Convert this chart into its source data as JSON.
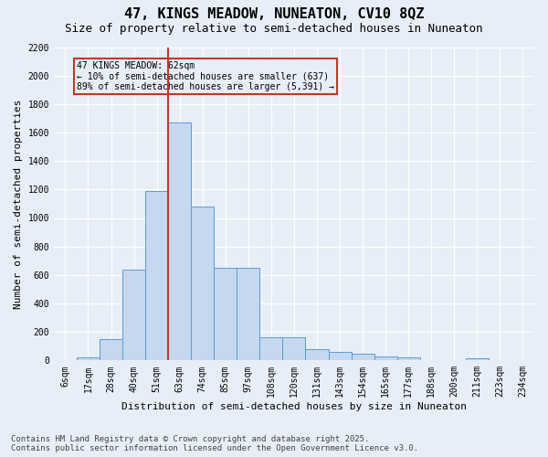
{
  "title1": "47, KINGS MEADOW, NUNEATON, CV10 8QZ",
  "title2": "Size of property relative to semi-detached houses in Nuneaton",
  "xlabel": "Distribution of semi-detached houses by size in Nuneaton",
  "ylabel": "Number of semi-detached properties",
  "categories": [
    "6sqm",
    "17sqm",
    "28sqm",
    "40sqm",
    "51sqm",
    "63sqm",
    "74sqm",
    "85sqm",
    "97sqm",
    "108sqm",
    "120sqm",
    "131sqm",
    "143sqm",
    "154sqm",
    "165sqm",
    "177sqm",
    "188sqm",
    "200sqm",
    "211sqm",
    "223sqm",
    "234sqm"
  ],
  "values": [
    5,
    20,
    150,
    640,
    1190,
    1670,
    1080,
    650,
    650,
    160,
    160,
    80,
    60,
    45,
    25,
    20,
    5,
    5,
    15,
    0,
    0
  ],
  "bar_color": "#c5d8f0",
  "bar_edge_color": "#5b9bd5",
  "bg_color": "#e8eef7",
  "grid_color": "#ffffff",
  "vline_index": 5,
  "vline_color": "#c0392b",
  "annotation_text": "47 KINGS MEADOW: 62sqm\n← 10% of semi-detached houses are smaller (637)\n89% of semi-detached houses are larger (5,391) →",
  "ylim": [
    0,
    2200
  ],
  "yticks": [
    0,
    200,
    400,
    600,
    800,
    1000,
    1200,
    1400,
    1600,
    1800,
    2000,
    2200
  ],
  "footer1": "Contains HM Land Registry data © Crown copyright and database right 2025.",
  "footer2": "Contains public sector information licensed under the Open Government Licence v3.0.",
  "title1_fontsize": 11,
  "title2_fontsize": 9,
  "label_fontsize": 8,
  "tick_fontsize": 7,
  "annot_fontsize": 7,
  "footer_fontsize": 6.5
}
